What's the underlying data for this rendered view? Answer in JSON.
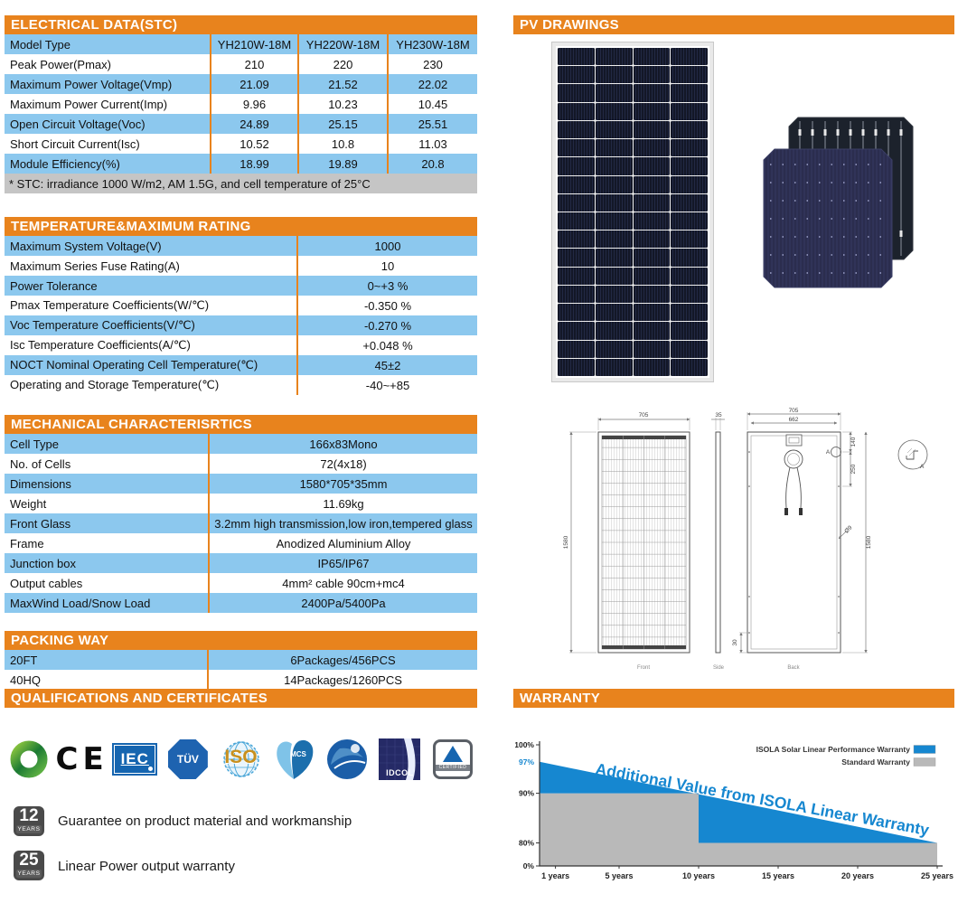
{
  "tables": {
    "electrical": {
      "title": "ELECTRICAL DATA(STC)",
      "columns": [
        "Model Type",
        "YH210W-18M",
        "YH220W-18M",
        "YH230W-18M"
      ],
      "rows": [
        [
          "Peak Power(Pmax)",
          "210",
          "220",
          "230"
        ],
        [
          "Maximum Power Voltage(Vmp)",
          "21.09",
          "21.52",
          "22.02"
        ],
        [
          "Maximum Power Current(Imp)",
          "9.96",
          "10.23",
          "10.45"
        ],
        [
          "Open Circuit Voltage(Voc)",
          "24.89",
          "25.15",
          "25.51"
        ],
        [
          "Short Circuit Current(Isc)",
          "10.52",
          "10.8",
          "11.03"
        ],
        [
          "Module Efficiency(%)",
          "18.99",
          "19.89",
          "20.8"
        ]
      ],
      "footnote": "* STC:  irradiance 1000 W/m2, AM 1.5G, and cell temperature of 25°C"
    },
    "temperature": {
      "title": "TEMPERATURE&MAXIMUM  RATING",
      "rows": [
        [
          "Maximum System Voltage(V)",
          "1000"
        ],
        [
          "Maximum Series Fuse Rating(A)",
          "10"
        ],
        [
          "Power Tolerance",
          "0~+3 %"
        ],
        [
          "Pmax Temperature Coefficients(W/℃)",
          "-0.350 %"
        ],
        [
          "Voc Temperature Coefficients(V/℃)",
          "-0.270 %"
        ],
        [
          "Isc Temperature Coefficients(A/℃)",
          "+0.048 %"
        ],
        [
          "NOCT Nominal Operating Cell Temperature(℃)",
          "45±2"
        ],
        [
          "Operating and Storage Temperature(℃)",
          "-40~+85"
        ]
      ]
    },
    "mechanical": {
      "title": "MECHANICAL  CHARACTERISRTICS",
      "rows": [
        [
          "Cell Type",
          "166x83Mono"
        ],
        [
          "No. of Cells",
          "72(4x18)"
        ],
        [
          "Dimensions",
          "1580*705*35mm"
        ],
        [
          "Weight",
          "11.69kg"
        ],
        [
          "Front Glass",
          "3.2mm high transmission,low iron,tempered glass"
        ],
        [
          "Frame",
          "Anodized Aluminium Alloy"
        ],
        [
          "Junction box",
          "IP65/IP67"
        ],
        [
          "Output cables",
          "4mm² cable 90cm+mc4"
        ],
        [
          "MaxWind Load/Snow Load",
          "2400Pa/5400Pa"
        ]
      ]
    },
    "packing": {
      "title": "PACKING WAY",
      "rows": [
        [
          "20FT",
          "6Packages/456PCS"
        ],
        [
          "40HQ",
          "14Packages/1260PCS"
        ]
      ]
    }
  },
  "certificates": {
    "title": "QUALIFICATIONS AND CERTIFICATES",
    "logos": {
      "ce": "CE",
      "iec": "IEC",
      "tuv_sud": "TÜV",
      "iso": "ISO",
      "mcs": "MCS",
      "idcol": "IDCOL",
      "tuv_rheinland_certified": "CERTIFIED"
    }
  },
  "warranty_badges": [
    {
      "years": "12",
      "unit": "YEARS",
      "text": "Guarantee on product material and workmanship"
    },
    {
      "years": "25",
      "unit": "YEARS",
      "text": "Linear Power output warranty"
    }
  ],
  "pv_drawings": {
    "title": "PV DRAWINGS",
    "front_label": "Front",
    "side_label": "Side",
    "back_label": "Back",
    "dims": {
      "width": "705",
      "height": "1580",
      "thickness": "35",
      "back_width": "705",
      "back_inner_width": "662",
      "hole_offset_top": "140",
      "hole_pitch": "250",
      "back_height": "1580",
      "bottom_offset": "30",
      "hole_dia": "Ø9",
      "detail_label": "A",
      "hole_marker_label": "A"
    }
  },
  "warranty": {
    "title": "WARRANTY"
  },
  "chart_data": {
    "type": "area",
    "annotation": "Additional Value from ISOLA Linear Warranty",
    "xlim": [
      0,
      25
    ],
    "x_ticks": [
      1,
      5,
      10,
      15,
      20,
      25
    ],
    "x_tick_labels": [
      "1 years",
      "5 years",
      "10 years",
      "15 years",
      "20 years",
      "25 years"
    ],
    "y_ticks": [
      0,
      80,
      90,
      100
    ],
    "y_tick_labels": [
      "0%",
      "80%",
      "90%",
      "100%"
    ],
    "start_value_label": "97%",
    "legend_position": "top-right",
    "series": [
      {
        "name": "ISOLA Solar Linear Performance Warranty",
        "color": "#1687d0",
        "points": [
          [
            0,
            97
          ],
          [
            25,
            80
          ]
        ]
      },
      {
        "name": "Standard Warranty",
        "color": "#b9b9b9",
        "points": [
          [
            0,
            90
          ],
          [
            10,
            90
          ],
          [
            10,
            80
          ],
          [
            25,
            80
          ]
        ]
      }
    ],
    "colors": {
      "accent_orange": "#E8831D",
      "row_blue": "#8CC8EE",
      "footnote_gray": "#C5C5C5"
    }
  }
}
